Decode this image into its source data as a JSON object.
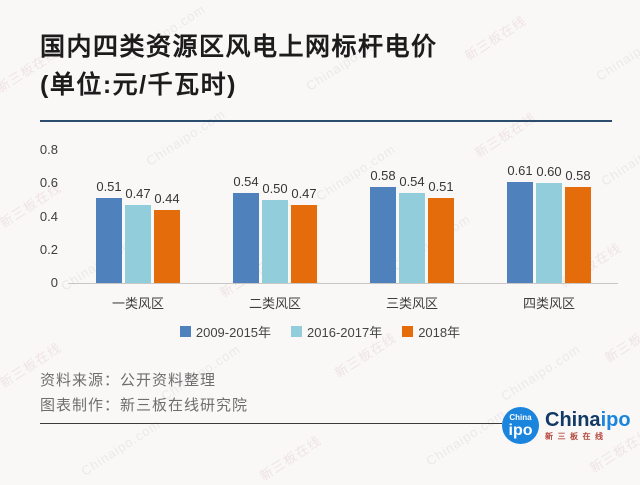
{
  "title": {
    "line1": "国内四类资源区风电上网标杆电价",
    "line2": "(单位:元/千瓦时)"
  },
  "chart_data": {
    "type": "bar",
    "categories": [
      "一类风区",
      "二类风区",
      "三类风区",
      "四类风区"
    ],
    "series": [
      {
        "name": "2009-2015年",
        "color": "#4F81BD",
        "values": [
          0.51,
          0.54,
          0.58,
          0.61
        ]
      },
      {
        "name": "2016-2017年",
        "color": "#92CDDC",
        "values": [
          0.47,
          0.5,
          0.54,
          0.6
        ]
      },
      {
        "name": "2018年",
        "color": "#E46C0A",
        "values": [
          0.44,
          0.47,
          0.51,
          0.58
        ]
      }
    ],
    "title": "国内四类资源区风电上网标杆电价(单位:元/千瓦时)",
    "xlabel": "",
    "ylabel": "",
    "ylim": [
      0,
      0.8
    ],
    "yticks": [
      0,
      0.2,
      0.4,
      0.6,
      0.8
    ],
    "grid": false,
    "legend_position": "bottom",
    "value_labels": true
  },
  "footer": {
    "source": "资料来源：公开资料整理",
    "maker": "图表制作：新三板在线研究院"
  },
  "logo": {
    "badge_top": "China",
    "badge_main": "ipo",
    "brand_primary": "China",
    "brand_secondary": "ipo",
    "subtext": "新三板在线",
    "blue": "#1b84dd",
    "navy": "#123a66",
    "red": "#b5483e"
  },
  "watermark": {
    "texts": [
      "新三板在线",
      "Chinaipo.com"
    ]
  },
  "colors": {
    "background": "#faf8f7",
    "title_divider": "#2c4d6e",
    "axis_line": "#c9c7c5",
    "footer_divider": "#3b3b3b"
  }
}
